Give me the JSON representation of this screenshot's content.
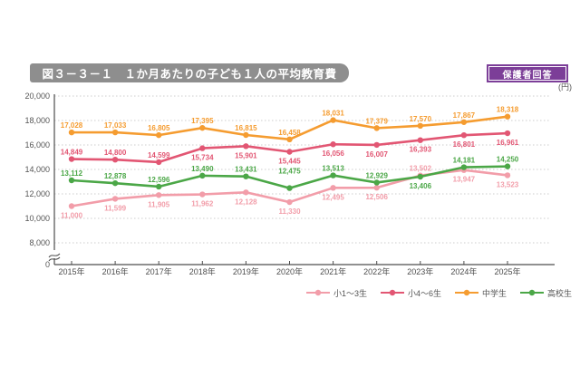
{
  "header": {
    "title": "図３－３－１　１か月あたりの子ども１人の平均教育費",
    "badge": "保護者回答",
    "title_bg": "#8E8E8E",
    "badge_bg": "#7C3E98"
  },
  "chart_data": {
    "type": "line",
    "title": "１か月あたりの子ども１人の平均教育費",
    "unit_label": "(円)",
    "x": [
      "2015年",
      "2016年",
      "2017年",
      "2018年",
      "2019年",
      "2020年",
      "2021年",
      "2022年",
      "2023年",
      "2024年",
      "2025年"
    ],
    "ylim": [
      0,
      20000
    ],
    "yticks": [
      0,
      8000,
      10000,
      12000,
      14000,
      16000,
      18000,
      20000
    ],
    "axis_break_between": [
      0,
      8000
    ],
    "grid": "horizontal-dotted",
    "legend_position": "bottom-right",
    "axis_color": "#4D4D4D",
    "grid_color": "#CCCCCC",
    "series": [
      {
        "id": "elementary-1-3",
        "name": "小1～3生",
        "color": "#F29DA9",
        "values": [
          11000,
          11599,
          11905,
          11962,
          12128,
          11330,
          12495,
          12506,
          13502,
          13947,
          13523
        ],
        "label_side": [
          "b",
          "b",
          "b",
          "b",
          "b",
          "b",
          "b",
          "b",
          "a",
          "b",
          "b"
        ]
      },
      {
        "id": "elementary-4-6",
        "name": "小4～6生",
        "color": "#E25673",
        "values": [
          14849,
          14800,
          14599,
          15734,
          15901,
          15445,
          16056,
          16007,
          16393,
          16801,
          16961
        ],
        "label_side": [
          "a",
          "a",
          "a",
          "b",
          "b",
          "b",
          "b",
          "b",
          "b",
          "b",
          "b"
        ]
      },
      {
        "id": "junior-high",
        "name": "中学生",
        "color": "#F59C30",
        "values": [
          17028,
          17033,
          16805,
          17395,
          16815,
          16458,
          18031,
          17379,
          17570,
          17867,
          18318
        ],
        "label_side": [
          "a",
          "a",
          "a",
          "a",
          "a",
          "a",
          "a",
          "a",
          "a",
          "a",
          "a"
        ]
      },
      {
        "id": "high-school",
        "name": "高校生",
        "color": "#4BA747",
        "values": [
          13112,
          12878,
          12596,
          13490,
          13431,
          12475,
          13513,
          12929,
          13406,
          14181,
          14250
        ],
        "label_side": [
          "a",
          "a",
          "a",
          "a",
          "a",
          "a2",
          "a",
          "a",
          "b",
          "a",
          "a"
        ]
      }
    ]
  }
}
